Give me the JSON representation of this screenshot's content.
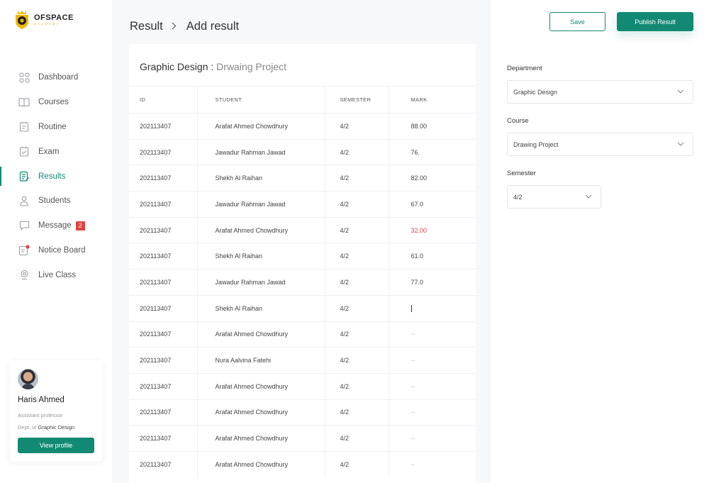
{
  "brand": {
    "name": "OFSPACE",
    "tagline": "ACADEMY"
  },
  "sidebar": {
    "items": [
      {
        "label": "Dashboard",
        "icon": "dashboard-icon"
      },
      {
        "label": "Courses",
        "icon": "book-icon"
      },
      {
        "label": "Routine",
        "icon": "routine-icon"
      },
      {
        "label": "Exam",
        "icon": "exam-icon"
      },
      {
        "label": "Results",
        "icon": "results-icon",
        "active": true
      },
      {
        "label": "Students",
        "icon": "students-icon"
      },
      {
        "label": "Message",
        "icon": "message-icon",
        "badge": "2"
      },
      {
        "label": "Notice Board",
        "icon": "notice-icon"
      },
      {
        "label": "Live Class",
        "icon": "live-icon"
      }
    ]
  },
  "profile": {
    "name": "Haris Ahmed",
    "role": "Assistant professor",
    "dept_prefix": "Dept. of",
    "dept": "Graphic Design",
    "button": "View profile"
  },
  "breadcrumb": {
    "parent": "Result",
    "current": "Add result"
  },
  "panel": {
    "department": "Graphic Design",
    "separator": " : ",
    "course": "Drwaing Project"
  },
  "table": {
    "headers": [
      "ID",
      "STUDENT",
      "SEMESTER",
      "MARK"
    ],
    "rows": [
      {
        "id": "202113407",
        "student": "Arafat Ahmed Chowdhury",
        "semester": "4/2",
        "mark": "88.00"
      },
      {
        "id": "202113407",
        "student": "Jawadur Rahman Jawad",
        "semester": "4/2",
        "mark": "76."
      },
      {
        "id": "202113407",
        "student": "Shekh Al Raihan",
        "semester": "4/2",
        "mark": "82.00"
      },
      {
        "id": "202113407",
        "student": "Jawadur Rahman Jawad",
        "semester": "4/2",
        "mark": "67.0"
      },
      {
        "id": "202113407",
        "student": "Arafat Ahmed Chowdhury",
        "semester": "4/2",
        "mark": "32.00"
      },
      {
        "id": "202113407",
        "student": "Shekh Al Raihan",
        "semester": "4/2",
        "mark": "61.0"
      },
      {
        "id": "202113407",
        "student": "Jawadur Rahman Jawad",
        "semester": "4/2",
        "mark": "77.0"
      },
      {
        "id": "202113407",
        "student": "Shekh Al Raihan",
        "semester": "4/2",
        "mark": ""
      },
      {
        "id": "202113407",
        "student": "Arafat Ahmed Chowdhury",
        "semester": "4/2",
        "mark": "--"
      },
      {
        "id": "202113407",
        "student": "Nura Aalvina Fatehi",
        "semester": "4/2",
        "mark": "--"
      },
      {
        "id": "202113407",
        "student": "Arafat Ahmed Chowdhury",
        "semester": "4/2",
        "mark": "--"
      },
      {
        "id": "202113407",
        "student": "Arafat Ahmed Chowdhury",
        "semester": "4/2",
        "mark": "--"
      },
      {
        "id": "202113407",
        "student": "Arafat Ahmed Chowdhury",
        "semester": "4/2",
        "mark": "--"
      },
      {
        "id": "202113407",
        "student": "Arafat Ahmed Chowdhury",
        "semester": "4/2",
        "mark": "--"
      }
    ]
  },
  "actions": {
    "save": "Save",
    "publish": "Publish Result"
  },
  "form": {
    "department_label": "Department",
    "department_value": "Graphic Design",
    "course_label": "Course",
    "course_value": "Drawing Project",
    "semester_label": "Semester",
    "semester_value": "4/2"
  },
  "colors": {
    "accent": "#128a73",
    "danger": "#e04444",
    "brand_yellow": "#f2b705"
  }
}
